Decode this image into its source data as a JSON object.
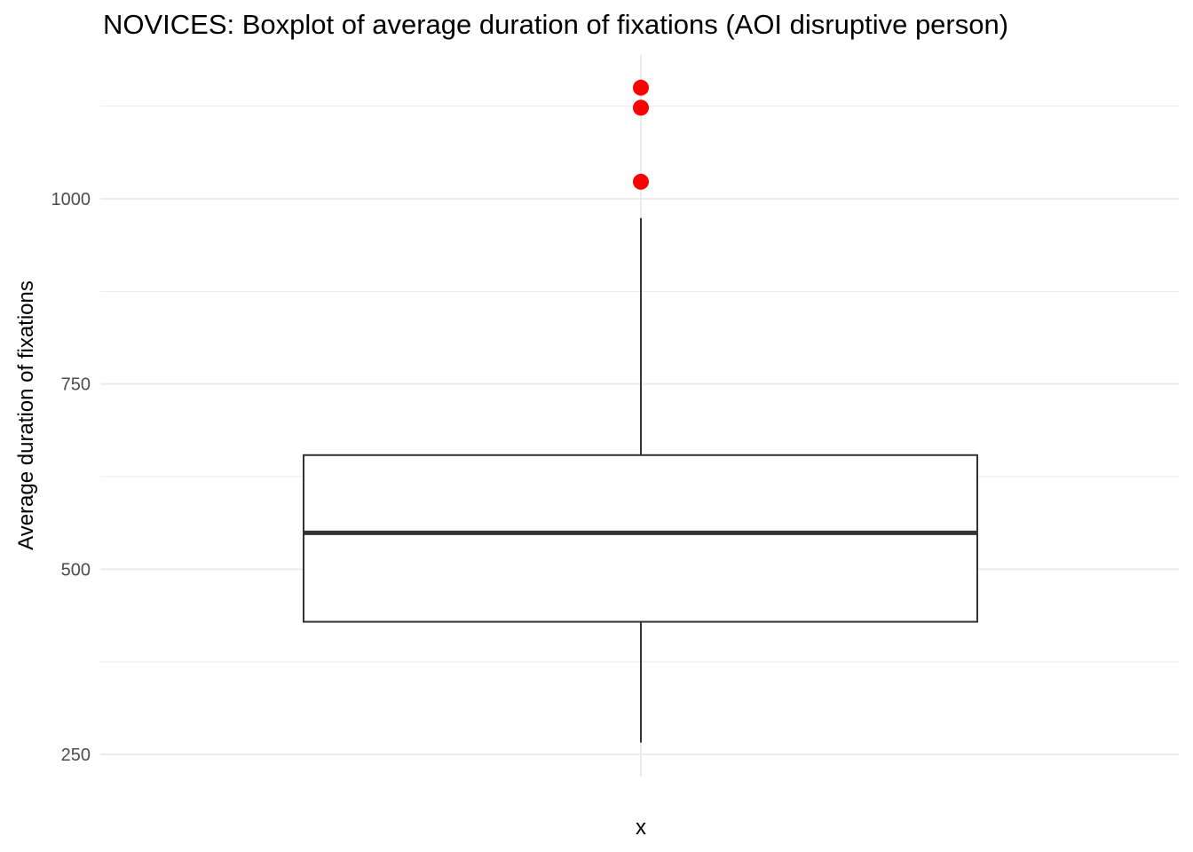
{
  "chart_data": {
    "type": "boxplot",
    "title": "NOVICES: Boxplot of average duration of fixations (AOI disruptive person)",
    "xlabel": "x",
    "ylabel": "Average duration of fixations",
    "y_ticks": [
      "250",
      "500",
      "750",
      "1000"
    ],
    "y_tick_values": [
      250,
      500,
      750,
      1000
    ],
    "ylim": [
      200,
      1185
    ],
    "grid": true,
    "box": {
      "whisker_low": 266,
      "q1": 429,
      "median": 549,
      "q3": 654,
      "whisker_high": 974
    },
    "outliers": [
      1023,
      1123,
      1150
    ],
    "outlier_color": "#ff0000"
  }
}
